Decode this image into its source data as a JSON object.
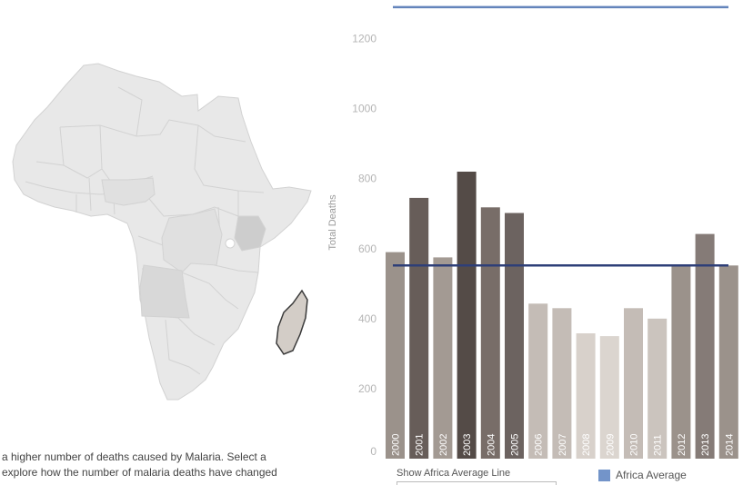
{
  "caption": {
    "line1": "a higher number of deaths caused by Malaria. Select a",
    "line2": "explore how the number of malaria deaths have changed"
  },
  "map": {
    "selected_region": "Madagascar",
    "colors": {
      "land": "#e8e8e8",
      "border": "#d2d2d2",
      "shade_light": "#e0e0e0",
      "shade_mid": "#d8d8d8",
      "shade_dark": "#cdcdcd",
      "selected_fill": "#d3cdc7",
      "selected_border": "#3a3a3a"
    }
  },
  "controls": {
    "toggle_label": "Show Africa Average Line"
  },
  "legend": {
    "label": "Africa Average",
    "color": "#7394c9"
  },
  "chart_data": {
    "type": "bar",
    "ylabel": "Total Deaths",
    "ylim": [
      0,
      1300
    ],
    "yticks": [
      0,
      200,
      400,
      600,
      800,
      1000,
      1200
    ],
    "categories": [
      "2000",
      "2001",
      "2002",
      "2003",
      "2004",
      "2005",
      "2006",
      "2007",
      "2008",
      "2009",
      "2010",
      "2011",
      "2012",
      "2013",
      "2014"
    ],
    "values": [
      590,
      745,
      575,
      820,
      718,
      702,
      443,
      430,
      358,
      350,
      430,
      400,
      552,
      642,
      552
    ],
    "bar_colors": [
      "#9b928b",
      "#675d59",
      "#a39a93",
      "#544b47",
      "#786d68",
      "#6c6360",
      "#c4bcb6",
      "#c4bcb6",
      "#d8d1cb",
      "#dbd5cf",
      "#c4bcb6",
      "#cbc4be",
      "#9b928b",
      "#857b77",
      "#9b928b"
    ],
    "reference_lines": [
      {
        "value": 552,
        "color": "#2e3f78"
      },
      {
        "value": 1290,
        "color": "#6384bb"
      }
    ],
    "grid": false
  }
}
